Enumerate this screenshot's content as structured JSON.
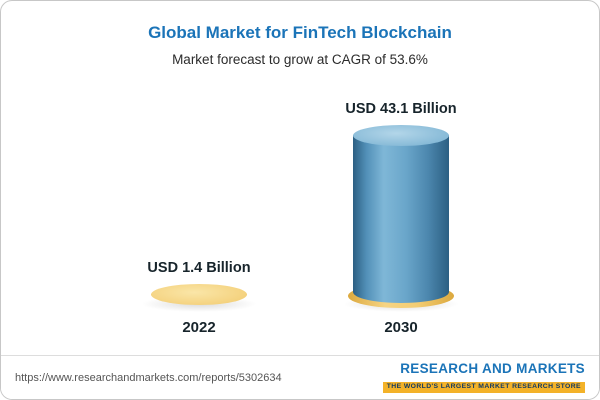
{
  "header": {
    "title": "Global Market for FinTech Blockchain",
    "subtitle": "Market forecast to grow at CAGR of 53.6%"
  },
  "chart_data": {
    "type": "bar",
    "categories": [
      "2022",
      "2030"
    ],
    "values": [
      1.4,
      43.1
    ],
    "value_labels": [
      "USD 1.4 Billion",
      "USD 43.1 Billion"
    ],
    "unit": "USD Billion",
    "title": "Global Market for FinTech Blockchain",
    "subtitle": "Market forecast to grow at CAGR of 53.6%",
    "ylim": [
      0,
      45
    ],
    "grid": false,
    "legend": false,
    "colors": {
      "bar_2022": "#f2ce79",
      "bar_2030": "#6aa6ca",
      "accent_title": "#1b74b8"
    }
  },
  "footer": {
    "url": "https://www.researchandmarkets.com/reports/5302634",
    "logo_text": "RESEARCH AND MARKETS",
    "logo_tagline": "THE WORLD'S LARGEST MARKET RESEARCH STORE"
  }
}
